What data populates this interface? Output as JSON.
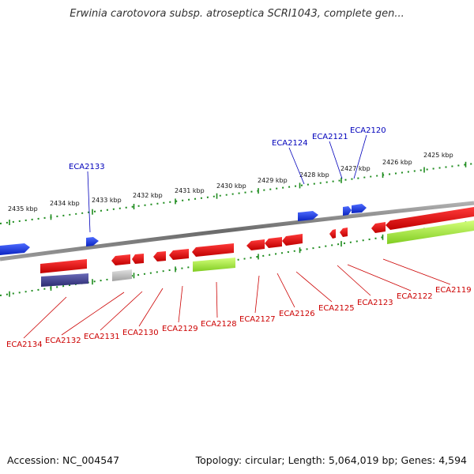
{
  "title": "Erwinia carotovora subsp. atroseptica SCRI1043, complete gen...",
  "footer": {
    "accession": "Accession: NC_004547",
    "info": "Topology: circular; Length: 5,064,019 bp; Genes: 4,594"
  },
  "colors": {
    "forward_gene": "#1a3be6",
    "reverse_gene": "#e60000",
    "grey_feature": "#b0b0b0",
    "green_feature": "#99e033",
    "navy_feature": "#3a3a8c",
    "backbone": "#7a7a7a",
    "ruler_tick": "#1e8c1e",
    "label_blue": "#0000bb",
    "label_red": "#cc0000"
  },
  "scale_labels": [
    "2435 kbp",
    "2434 kbp",
    "2433 kbp",
    "2432 kbp",
    "2431 kbp",
    "2430 kbp",
    "2429 kbp",
    "2428 kbp",
    "2427 kbp",
    "2426 kbp",
    "2425 kbp"
  ],
  "genes_top": [
    "ECA2133",
    "ECA2124",
    "ECA2121",
    "ECA2120"
  ],
  "genes_bottom": [
    "ECA2134",
    "ECA2132",
    "ECA2131",
    "ECA2130",
    "ECA2129",
    "ECA2128",
    "ECA2127",
    "ECA2126",
    "ECA2125",
    "ECA2123",
    "ECA2122",
    "ECA2119"
  ]
}
